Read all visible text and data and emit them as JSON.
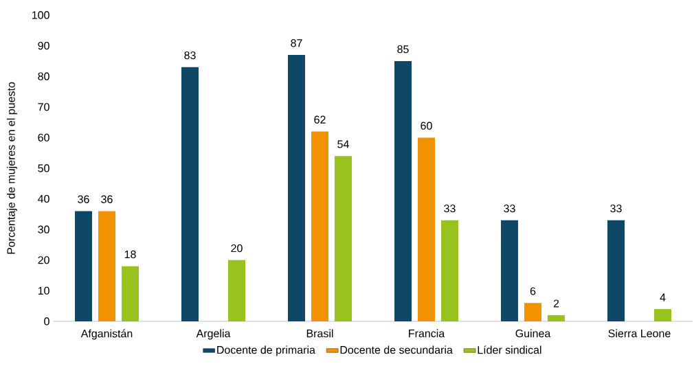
{
  "chart_data": {
    "type": "bar",
    "ylabel": "Porcentaje de mujeres en el puesto",
    "categories": [
      "Afganistán",
      "Argelia",
      "Brasil",
      "Francia",
      "Guinea",
      "Sierra Leone"
    ],
    "series": [
      {
        "name": "Docente de primaria",
        "color": "#0f4866",
        "values": [
          36,
          83,
          87,
          85,
          33,
          33
        ]
      },
      {
        "name": "Docente de secundaria",
        "color": "#f39200",
        "values": [
          36,
          null,
          62,
          60,
          6,
          null
        ]
      },
      {
        "name": "Líder sindical",
        "color": "#97c21f",
        "values": [
          18,
          20,
          54,
          33,
          2,
          4
        ]
      }
    ],
    "ylim": [
      0,
      100
    ],
    "yticks": [
      0,
      10,
      20,
      30,
      40,
      50,
      60,
      70,
      80,
      90,
      100
    ],
    "data_labels": true,
    "legend": "bottom",
    "grid": false
  }
}
